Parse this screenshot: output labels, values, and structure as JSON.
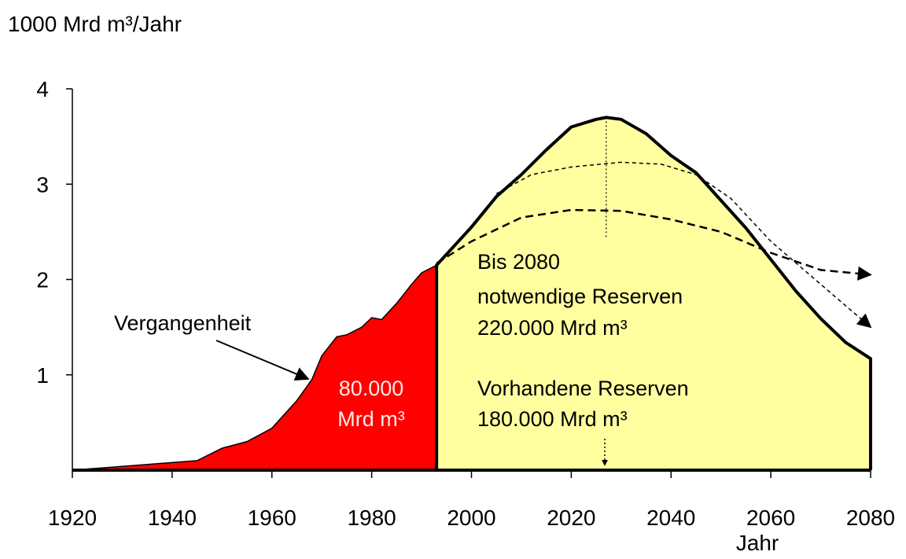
{
  "chart_data": {
    "type": "area",
    "y_axis_label": "1000 Mrd m³/Jahr",
    "x_axis_label": "Jahr",
    "xlim": [
      1920,
      2080
    ],
    "ylim": [
      0,
      4
    ],
    "xticks": [
      1920,
      1940,
      1960,
      1980,
      2000,
      2020,
      2040,
      2060,
      2080
    ],
    "yticks": [
      1,
      2,
      3,
      4
    ],
    "series": [
      {
        "color": "#ff0000",
        "x": [
          1920,
          1945,
          1950,
          1955,
          1960,
          1965,
          1968,
          1970,
          1973,
          1975,
          1978,
          1980,
          1982,
          1985,
          1988,
          1990,
          1993
        ],
        "values": [
          0,
          0.1,
          0.23,
          0.3,
          0.44,
          0.73,
          0.95,
          1.2,
          1.4,
          1.42,
          1.5,
          1.6,
          1.58,
          1.75,
          1.95,
          2.07,
          2.15
        ]
      },
      {
        "color": "#ffffa0",
        "x": [
          1993,
          2000,
          2005,
          2010,
          2015,
          2020,
          2025,
          2027,
          2030,
          2035,
          2040,
          2045,
          2050,
          2055,
          2060,
          2065,
          2070,
          2075,
          2080
        ],
        "values": [
          2.15,
          2.55,
          2.87,
          3.1,
          3.36,
          3.6,
          3.68,
          3.7,
          3.68,
          3.53,
          3.3,
          3.12,
          2.83,
          2.54,
          2.21,
          1.88,
          1.59,
          1.34,
          1.17
        ]
      }
    ],
    "scenarios": [
      {
        "color": "#000000",
        "x": [
          2005,
          2012,
          2020,
          2030,
          2038,
          2045,
          2052,
          2060,
          2070,
          2080
        ],
        "values": [
          2.9,
          3.1,
          3.18,
          3.23,
          3.21,
          3.1,
          2.85,
          2.4,
          1.95,
          1.5
        ]
      },
      {
        "color": "#000000",
        "x": [
          1993,
          2000,
          2010,
          2020,
          2030,
          2040,
          2050,
          2060,
          2070,
          2080
        ],
        "values": [
          2.17,
          2.4,
          2.65,
          2.73,
          2.72,
          2.63,
          2.5,
          2.28,
          2.1,
          2.05
        ]
      }
    ],
    "annotations": [
      "Vergangenheit",
      "80.000",
      "Mrd m³",
      "Bis 2080",
      "notwendige Reserven",
      "220.000 Mrd m³",
      "Vorhandene Reserven",
      "180.000 Mrd m³"
    ]
  }
}
